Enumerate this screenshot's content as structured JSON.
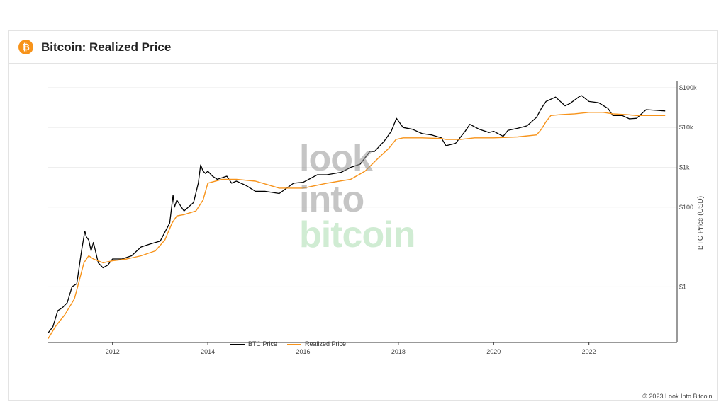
{
  "header": {
    "title": "Bitcoin: Realized Price",
    "logo_glyph": "₿",
    "logo_color": "#f7931a"
  },
  "watermark": {
    "line1": "look",
    "line2": "into",
    "line3": "bitcoin"
  },
  "copyright": "© 2023 Look Into Bitcoin.",
  "colors": {
    "btc": "#000000",
    "realized": "#f7931a",
    "grid": "#eeeeee",
    "axis": "#444444"
  },
  "chart_data": {
    "type": "line",
    "title": "Bitcoin: Realized Price",
    "xlabel": "",
    "ylabel": "BTC Price (USD)",
    "y_scale": "log",
    "xlim": [
      2010.65,
      2023.85
    ],
    "ylim": [
      0.04,
      150000
    ],
    "x_ticks": [
      2012,
      2014,
      2016,
      2018,
      2020,
      2022
    ],
    "x_tick_labels": [
      "2012",
      "2014",
      "2016",
      "2018",
      "2020",
      "2022"
    ],
    "y_ticks": [
      1,
      100,
      1000,
      10000,
      100000
    ],
    "y_tick_labels": [
      "$1",
      "$100",
      "$1k",
      "$10k",
      "$100k"
    ],
    "grid": true,
    "legend_position": "bottom-center",
    "series": [
      {
        "name": "BTC Price",
        "x": [
          2010.65,
          2010.75,
          2010.85,
          2010.95,
          2011.05,
          2011.15,
          2011.25,
          2011.35,
          2011.42,
          2011.45,
          2011.5,
          2011.55,
          2011.6,
          2011.7,
          2011.8,
          2011.9,
          2012.0,
          2012.2,
          2012.4,
          2012.6,
          2012.8,
          2013.0,
          2013.2,
          2013.27,
          2013.3,
          2013.35,
          2013.5,
          2013.7,
          2013.8,
          2013.85,
          2013.9,
          2013.95,
          2014.0,
          2014.1,
          2014.2,
          2014.4,
          2014.5,
          2014.6,
          2014.8,
          2015.0,
          2015.2,
          2015.5,
          2015.8,
          2016.0,
          2016.3,
          2016.5,
          2016.8,
          2017.0,
          2017.2,
          2017.4,
          2017.5,
          2017.7,
          2017.85,
          2017.96,
          2018.1,
          2018.3,
          2018.5,
          2018.7,
          2018.9,
          2019.0,
          2019.2,
          2019.4,
          2019.5,
          2019.7,
          2019.9,
          2020.0,
          2020.2,
          2020.3,
          2020.5,
          2020.7,
          2020.9,
          2021.0,
          2021.1,
          2021.3,
          2021.5,
          2021.6,
          2021.8,
          2021.85,
          2022.0,
          2022.2,
          2022.4,
          2022.5,
          2022.7,
          2022.85,
          2023.0,
          2023.2,
          2023.4,
          2023.6
        ],
        "values": [
          0.07,
          0.1,
          0.25,
          0.3,
          0.4,
          1,
          1.2,
          8,
          25,
          18,
          15,
          8,
          13,
          4,
          3,
          3.5,
          5,
          5,
          6,
          10,
          12,
          14,
          40,
          200,
          100,
          150,
          80,
          130,
          400,
          1150,
          800,
          700,
          800,
          600,
          500,
          600,
          400,
          450,
          350,
          250,
          250,
          220,
          400,
          420,
          650,
          650,
          750,
          1000,
          1200,
          2500,
          2500,
          4500,
          8000,
          17000,
          10000,
          9000,
          7000,
          6500,
          5500,
          3500,
          4000,
          8000,
          12000,
          9000,
          7500,
          8000,
          6000,
          8500,
          9500,
          11000,
          18000,
          30000,
          45000,
          58000,
          35000,
          40000,
          60000,
          63000,
          45000,
          42000,
          30000,
          20000,
          20000,
          16500,
          17000,
          28000,
          27000,
          26000
        ]
      },
      {
        "name": "Realized Price",
        "x": [
          2010.65,
          2010.8,
          2011.0,
          2011.2,
          2011.4,
          2011.5,
          2011.6,
          2011.8,
          2012.0,
          2012.3,
          2012.6,
          2012.9,
          2013.1,
          2013.25,
          2013.35,
          2013.5,
          2013.75,
          2013.9,
          2014.0,
          2014.3,
          2014.6,
          2015.0,
          2015.5,
          2016.0,
          2016.5,
          2017.0,
          2017.3,
          2017.6,
          2017.8,
          2017.95,
          2018.1,
          2018.5,
          2018.9,
          2019.0,
          2019.3,
          2019.6,
          2020.0,
          2020.5,
          2020.9,
          2021.0,
          2021.1,
          2021.2,
          2021.4,
          2021.7,
          2022.0,
          2022.3,
          2022.5,
          2022.8,
          2023.0,
          2023.3,
          2023.6
        ],
        "values": [
          0.05,
          0.1,
          0.2,
          0.5,
          4,
          6,
          5,
          4,
          4.5,
          5,
          6,
          8,
          15,
          40,
          60,
          65,
          80,
          150,
          400,
          500,
          500,
          450,
          300,
          300,
          400,
          500,
          800,
          1800,
          3000,
          5000,
          5500,
          5500,
          5300,
          5000,
          5000,
          5500,
          5500,
          5800,
          6500,
          9000,
          14000,
          20000,
          21000,
          22000,
          24000,
          24000,
          22000,
          21000,
          20000,
          20000,
          20000
        ]
      }
    ]
  }
}
